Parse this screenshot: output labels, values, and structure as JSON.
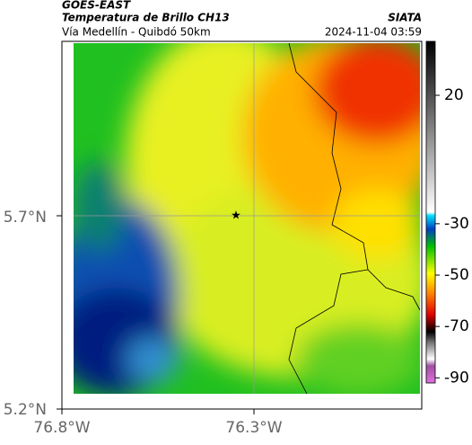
{
  "header": {
    "title": "GOES-EAST",
    "subtitle": "Temperatura de Brillo CH13",
    "location": "Vía Medellín - Quibdó 50km",
    "source": "SIATA",
    "datetime": "2024-11-04 03:59"
  },
  "map": {
    "lat_labels": [
      "5.7°N",
      "5.2°N"
    ],
    "lon_labels": [
      "76.8°W",
      "76.3°W"
    ]
  },
  "colorbar": {
    "range": [
      -92,
      41
    ],
    "ticks": [
      20,
      -30,
      -50,
      -70,
      -90
    ]
  }
}
